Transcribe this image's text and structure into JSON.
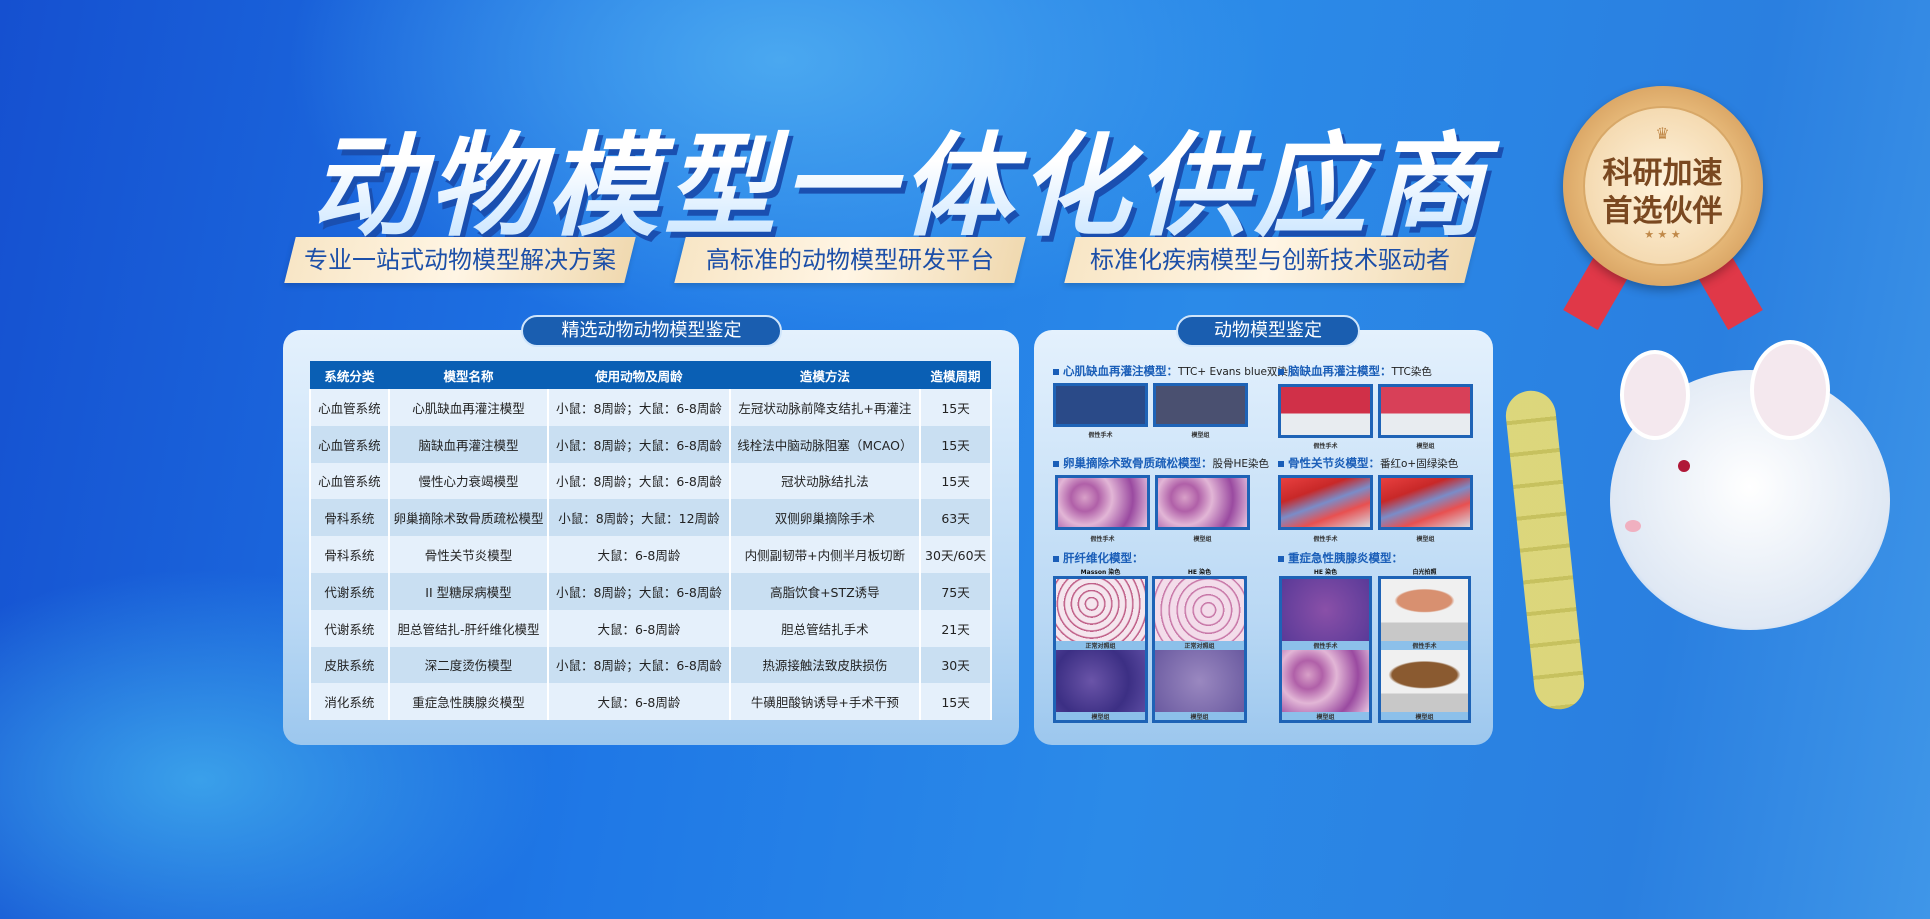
{
  "title": "动物模型一体化供应商",
  "taglines": [
    "专业一站式动物模型解决方案",
    "高标准的动物模型研发平台",
    "标准化疾病模型与创新技术驱动者"
  ],
  "badge": {
    "line1": "科研加速",
    "line2": "首选伙伴",
    "colors": {
      "gold": "#e6b878",
      "ribbon": "#e03848"
    }
  },
  "table_panel": {
    "title": "精选动物动物模型鉴定",
    "headers": [
      "系统分类",
      "模型名称",
      "使用动物及周龄",
      "造模方法",
      "造模周期"
    ],
    "rows": [
      [
        "心血管系统",
        "心肌缺血再灌注模型",
        "小鼠：8周龄；大鼠：6-8周龄",
        "左冠状动脉前降支结扎+再灌注",
        "15天"
      ],
      [
        "心血管系统",
        "脑缺血再灌注模型",
        "小鼠：8周龄；大鼠：6-8周龄",
        "线栓法中脑动脉阻塞（MCAO）",
        "15天"
      ],
      [
        "心血管系统",
        "慢性心力衰竭模型",
        "小鼠：8周龄；大鼠：6-8周龄",
        "冠状动脉结扎法",
        "15天"
      ],
      [
        "骨科系统",
        "卵巢摘除术致骨质疏松模型",
        "小鼠：8周龄；大鼠：12周龄",
        "双侧卵巢摘除手术",
        "63天"
      ],
      [
        "骨科系统",
        "骨性关节炎模型",
        "大鼠：6-8周龄",
        "内侧副韧带+内侧半月板切断",
        "30天/60天"
      ],
      [
        "代谢系统",
        "II 型糖尿病模型",
        "小鼠：8周龄；大鼠：6-8周龄",
        "高脂饮食+STZ诱导",
        "75天"
      ],
      [
        "代谢系统",
        "胆总管结扎-肝纤维化模型",
        "大鼠：6-8周龄",
        "胆总管结扎手术",
        "21天"
      ],
      [
        "皮肤系统",
        "深二度烫伤模型",
        "小鼠：8周龄；大鼠：6-8周龄",
        "热源接触法致皮肤损伤",
        "30天"
      ],
      [
        "消化系统",
        "重症急性胰腺炎模型",
        "大鼠：6-8周龄",
        "牛磺胆酸钠诱导+手术干预",
        "15天"
      ]
    ]
  },
  "image_panel": {
    "title": "动物模型鉴定",
    "sections": [
      {
        "name": "心肌缺血再灌注模型：",
        "stain": "TTC+ Evans blue双染",
        "captions": [
          "假性手术",
          "模型组"
        ]
      },
      {
        "name": "脑缺血再灌注模型：",
        "stain": "TTC染色",
        "captions": [
          "假性手术",
          "模型组"
        ]
      },
      {
        "name": "卵巢摘除术致骨质疏松模型：",
        "stain": "股骨HE染色",
        "captions": [
          "假性手术",
          "模型组"
        ]
      },
      {
        "name": "骨性关节炎模型：",
        "stain": "番红o+固绿染色",
        "captions": [
          "假性手术",
          "模型组"
        ]
      },
      {
        "name": "肝纤维化模型：",
        "stain": "",
        "subheads": [
          "Masson 染色",
          "HE 染色"
        ],
        "captions": [
          "正常对照组",
          "正常对照组",
          "模型组",
          "模型组"
        ]
      },
      {
        "name": "重症急性胰腺炎模型：",
        "stain": "",
        "subheads": [
          "HE 染色",
          "白光拍照"
        ],
        "captions": [
          "假性手术",
          "假性手术",
          "模型组",
          "模型组"
        ]
      }
    ]
  }
}
